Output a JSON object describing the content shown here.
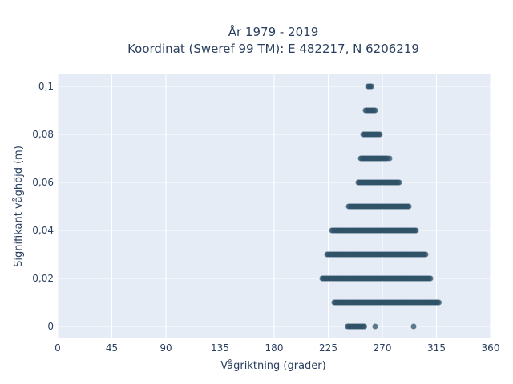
{
  "chart_data": {
    "type": "scatter",
    "title_line1": "År 1979 - 2019",
    "title_line2": "Koordinat (Sweref 99 TM): E 482217, N 6206219",
    "xlabel": "Vågriktning (grader)",
    "ylabel": "Signifikant våghöjd (m)",
    "xlim": [
      0,
      360
    ],
    "ylim": [
      -0.005,
      0.105
    ],
    "xticks": [
      0,
      45,
      90,
      135,
      180,
      225,
      270,
      315,
      360
    ],
    "xtick_labels": [
      "0",
      "45",
      "90",
      "135",
      "180",
      "225",
      "270",
      "315",
      "360"
    ],
    "yticks": [
      0,
      0.02,
      0.04,
      0.06,
      0.08,
      0.1
    ],
    "ytick_labels": [
      "0",
      "0,02",
      "0,04",
      "0,06",
      "0,08",
      "0,1"
    ],
    "grid": true,
    "point_color": "#2f5168",
    "plot_bg": "#e5ecf6",
    "bands": [
      {
        "y": 0.0,
        "x_min": 241,
        "x_max": 255
      },
      {
        "y": 0.01,
        "x_min": 230,
        "x_max": 317
      },
      {
        "y": 0.02,
        "x_min": 220,
        "x_max": 310
      },
      {
        "y": 0.03,
        "x_min": 224,
        "x_max": 306
      },
      {
        "y": 0.04,
        "x_min": 228,
        "x_max": 298
      },
      {
        "y": 0.05,
        "x_min": 242,
        "x_max": 292
      },
      {
        "y": 0.06,
        "x_min": 250,
        "x_max": 284
      },
      {
        "y": 0.07,
        "x_min": 252,
        "x_max": 274
      },
      {
        "y": 0.08,
        "x_min": 254,
        "x_max": 268
      },
      {
        "y": 0.09,
        "x_min": 256,
        "x_max": 264
      },
      {
        "y": 0.1,
        "x_min": 258,
        "x_max": 261
      }
    ],
    "outliers": [
      {
        "x": 264,
        "y": 0.0
      },
      {
        "x": 296,
        "y": 0.0
      },
      {
        "x": 276,
        "y": 0.07
      }
    ]
  }
}
